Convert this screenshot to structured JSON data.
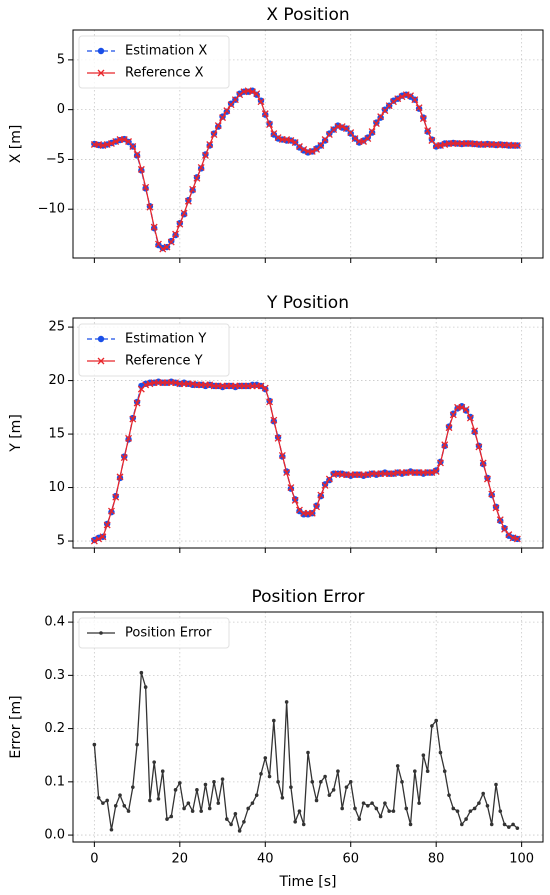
{
  "chart_data": [
    {
      "type": "line",
      "title": "X Position",
      "ylabel": "X [m]",
      "x": [
        0,
        1,
        2,
        3,
        4,
        5,
        6,
        7,
        8,
        9,
        10,
        11,
        12,
        13,
        14,
        15,
        16,
        17,
        18,
        19,
        20,
        21,
        22,
        23,
        24,
        25,
        26,
        27,
        28,
        29,
        30,
        31,
        32,
        33,
        34,
        35,
        36,
        37,
        38,
        39,
        40,
        41,
        42,
        43,
        44,
        45,
        46,
        47,
        48,
        49,
        50,
        51,
        52,
        53,
        54,
        55,
        56,
        57,
        58,
        59,
        60,
        61,
        62,
        63,
        64,
        65,
        66,
        67,
        68,
        69,
        70,
        71,
        72,
        73,
        74,
        75,
        76,
        77,
        78,
        79,
        80,
        81,
        82,
        83,
        84,
        85,
        86,
        87,
        88,
        89,
        90,
        91,
        92,
        93,
        94,
        95,
        96,
        97,
        98,
        99
      ],
      "series": [
        {
          "name": "Estimation X",
          "color": "#1a4fe8",
          "dash": true,
          "marker": "circle",
          "values": [
            -3.45,
            -3.55,
            -3.6,
            -3.5,
            -3.35,
            -3.2,
            -3.05,
            -2.95,
            -3.25,
            -3.7,
            -4.6,
            -6.1,
            -7.9,
            -9.7,
            -11.9,
            -13.6,
            -13.9,
            -13.8,
            -13.2,
            -12.6,
            -11.4,
            -10.5,
            -9.1,
            -8.1,
            -6.8,
            -5.9,
            -4.5,
            -3.6,
            -2.4,
            -1.7,
            -0.7,
            -0.2,
            0.6,
            1.0,
            1.6,
            1.8,
            1.8,
            1.9,
            1.5,
            0.9,
            -0.5,
            -1.4,
            -2.5,
            -2.9,
            -3.0,
            -3.1,
            -3.1,
            -3.3,
            -3.8,
            -4.1,
            -4.3,
            -4.2,
            -3.9,
            -3.6,
            -3.1,
            -2.4,
            -2.0,
            -1.6,
            -1.8,
            -1.9,
            -2.4,
            -2.9,
            -3.3,
            -3.1,
            -2.8,
            -2.3,
            -1.3,
            -0.8,
            0.0,
            0.4,
            0.9,
            1.1,
            1.4,
            1.5,
            1.3,
            1.0,
            0.1,
            -0.8,
            -2.2,
            -3.0,
            -3.7,
            -3.6,
            -3.4,
            -3.4,
            -3.35,
            -3.4,
            -3.45,
            -3.4,
            -3.4,
            -3.45,
            -3.5,
            -3.5,
            -3.45,
            -3.5,
            -3.55,
            -3.5,
            -3.55,
            -3.6,
            -3.6,
            -3.6
          ]
        },
        {
          "name": "Reference X",
          "color": "#e8262b",
          "dash": false,
          "marker": "cross",
          "values": [
            -3.5,
            -3.5,
            -3.6,
            -3.5,
            -3.4,
            -3.2,
            -3.0,
            -3.0,
            -3.2,
            -3.7,
            -4.5,
            -6.0,
            -7.8,
            -9.8,
            -11.8,
            -13.5,
            -14.0,
            -13.8,
            -13.3,
            -12.5,
            -11.5,
            -10.4,
            -9.2,
            -8.0,
            -6.9,
            -5.8,
            -4.6,
            -3.5,
            -2.5,
            -1.6,
            -0.8,
            -0.1,
            0.5,
            1.0,
            1.5,
            1.8,
            1.9,
            1.8,
            1.6,
            0.8,
            -0.4,
            -1.5,
            -2.4,
            -2.8,
            -3.0,
            -3.0,
            -3.1,
            -3.3,
            -3.7,
            -4.0,
            -4.2,
            -4.2,
            -4.0,
            -3.6,
            -3.0,
            -2.5,
            -2.0,
            -1.7,
            -1.7,
            -1.9,
            -2.3,
            -2.9,
            -3.2,
            -3.2,
            -2.9,
            -2.2,
            -1.4,
            -0.7,
            -0.1,
            0.4,
            0.8,
            1.1,
            1.3,
            1.5,
            1.4,
            1.0,
            0.2,
            -0.9,
            -2.1,
            -3.1,
            -3.6,
            -3.6,
            -3.5,
            -3.4,
            -3.4,
            -3.4,
            -3.4,
            -3.4,
            -3.4,
            -3.45,
            -3.45,
            -3.5,
            -3.5,
            -3.5,
            -3.5,
            -3.55,
            -3.55,
            -3.55,
            -3.6,
            -3.6
          ]
        }
      ],
      "xlim": [
        -5,
        105
      ],
      "xticks": [
        0,
        20,
        40,
        60,
        80,
        100
      ],
      "ylim": [
        -14.9,
        8.0
      ],
      "yticks": [
        {
          "value": -10,
          "label": "−10"
        },
        {
          "value": -5,
          "label": "−5"
        },
        0,
        5
      ],
      "grid": true,
      "legend": "upper left"
    },
    {
      "type": "line",
      "title": "Y Position",
      "ylabel": "Y [m]",
      "x": [
        0,
        1,
        2,
        3,
        4,
        5,
        6,
        7,
        8,
        9,
        10,
        11,
        12,
        13,
        14,
        15,
        16,
        17,
        18,
        19,
        20,
        21,
        22,
        23,
        24,
        25,
        26,
        27,
        28,
        29,
        30,
        31,
        32,
        33,
        34,
        35,
        36,
        37,
        38,
        39,
        40,
        41,
        42,
        43,
        44,
        45,
        46,
        47,
        48,
        49,
        50,
        51,
        52,
        53,
        54,
        55,
        56,
        57,
        58,
        59,
        60,
        61,
        62,
        63,
        64,
        65,
        66,
        67,
        68,
        69,
        70,
        71,
        72,
        73,
        74,
        75,
        76,
        77,
        78,
        79,
        80,
        81,
        82,
        83,
        84,
        85,
        86,
        87,
        88,
        89,
        90,
        91,
        92,
        93,
        94,
        95,
        96,
        97,
        98,
        99
      ],
      "series": [
        {
          "name": "Estimation Y",
          "color": "#1a4fe8",
          "dash": true,
          "marker": "circle",
          "values": [
            5.1,
            5.3,
            5.4,
            6.6,
            7.7,
            9.2,
            10.9,
            12.9,
            14.5,
            16.5,
            18.0,
            19.5,
            19.7,
            19.8,
            19.8,
            19.9,
            19.8,
            19.8,
            19.9,
            19.8,
            19.7,
            19.8,
            19.7,
            19.6,
            19.6,
            19.6,
            19.5,
            19.6,
            19.5,
            19.5,
            19.4,
            19.5,
            19.5,
            19.4,
            19.5,
            19.5,
            19.5,
            19.6,
            19.6,
            19.5,
            19.2,
            18.1,
            16.2,
            14.7,
            12.9,
            11.5,
            9.9,
            8.9,
            7.8,
            7.5,
            7.5,
            7.6,
            8.3,
            9.2,
            10.3,
            10.7,
            11.3,
            11.3,
            11.3,
            11.2,
            11.1,
            11.2,
            11.2,
            11.1,
            11.2,
            11.3,
            11.2,
            11.3,
            11.4,
            11.3,
            11.3,
            11.4,
            11.3,
            11.4,
            11.5,
            11.4,
            11.4,
            11.3,
            11.4,
            11.4,
            11.6,
            12.4,
            13.9,
            15.7,
            16.9,
            17.4,
            17.6,
            17.2,
            16.6,
            15.2,
            13.9,
            12.2,
            10.9,
            9.3,
            8.2,
            6.9,
            6.2,
            5.5,
            5.3,
            5.2
          ]
        },
        {
          "name": "Reference Y",
          "color": "#e8262b",
          "dash": false,
          "marker": "cross",
          "values": [
            5.0,
            5.2,
            5.4,
            6.5,
            7.8,
            9.1,
            11.0,
            12.8,
            14.6,
            16.4,
            17.9,
            19.2,
            19.6,
            19.7,
            19.8,
            19.8,
            19.8,
            19.8,
            19.8,
            19.8,
            19.7,
            19.7,
            19.7,
            19.7,
            19.6,
            19.6,
            19.6,
            19.6,
            19.5,
            19.5,
            19.5,
            19.5,
            19.5,
            19.5,
            19.5,
            19.5,
            19.5,
            19.5,
            19.5,
            19.5,
            19.3,
            18.0,
            16.3,
            14.6,
            13.0,
            11.4,
            10.0,
            8.8,
            7.9,
            7.6,
            7.6,
            7.6,
            8.2,
            9.3,
            10.2,
            10.8,
            11.2,
            11.3,
            11.2,
            11.2,
            11.2,
            11.2,
            11.2,
            11.2,
            11.2,
            11.3,
            11.3,
            11.3,
            11.3,
            11.3,
            11.3,
            11.4,
            11.4,
            11.4,
            11.4,
            11.4,
            11.4,
            11.4,
            11.4,
            11.4,
            11.5,
            12.3,
            14.0,
            15.6,
            16.8,
            17.5,
            17.5,
            17.3,
            16.5,
            15.3,
            13.8,
            12.3,
            10.8,
            9.4,
            8.1,
            7.0,
            6.1,
            5.6,
            5.3,
            5.2
          ]
        }
      ],
      "xlim": [
        -5,
        105
      ],
      "xticks": [
        0,
        20,
        40,
        60,
        80,
        100
      ],
      "ylim": [
        4.35,
        25.85
      ],
      "yticks": [
        5,
        10,
        15,
        20,
        25
      ],
      "grid": true,
      "legend": "upper left"
    },
    {
      "type": "line",
      "title": "Position Error",
      "ylabel": "Error [m]",
      "xlabel": "Time [s]",
      "x": [
        0,
        1,
        2,
        3,
        4,
        5,
        6,
        7,
        8,
        9,
        10,
        11,
        12,
        13,
        14,
        15,
        16,
        17,
        18,
        19,
        20,
        21,
        22,
        23,
        24,
        25,
        26,
        27,
        28,
        29,
        30,
        31,
        32,
        33,
        34,
        35,
        36,
        37,
        38,
        39,
        40,
        41,
        42,
        43,
        44,
        45,
        46,
        47,
        48,
        49,
        50,
        51,
        52,
        53,
        54,
        55,
        56,
        57,
        58,
        59,
        60,
        61,
        62,
        63,
        64,
        65,
        66,
        67,
        68,
        69,
        70,
        71,
        72,
        73,
        74,
        75,
        76,
        77,
        78,
        79,
        80,
        81,
        82,
        83,
        84,
        85,
        86,
        87,
        88,
        89,
        90,
        91,
        92,
        93,
        94,
        95,
        96,
        97,
        98,
        99
      ],
      "series": [
        {
          "name": "Position Error",
          "color": "#333333",
          "dash": false,
          "marker": "dot",
          "values": [
            0.17,
            0.07,
            0.06,
            0.065,
            0.01,
            0.055,
            0.075,
            0.055,
            0.045,
            0.09,
            0.17,
            0.305,
            0.278,
            0.065,
            0.137,
            0.068,
            0.12,
            0.03,
            0.035,
            0.085,
            0.098,
            0.05,
            0.06,
            0.045,
            0.085,
            0.045,
            0.095,
            0.05,
            0.1,
            0.06,
            0.105,
            0.03,
            0.02,
            0.04,
            0.008,
            0.025,
            0.05,
            0.06,
            0.075,
            0.115,
            0.145,
            0.11,
            0.215,
            0.1,
            0.07,
            0.25,
            0.09,
            0.025,
            0.045,
            0.02,
            0.155,
            0.1,
            0.065,
            0.1,
            0.11,
            0.075,
            0.085,
            0.12,
            0.05,
            0.09,
            0.1,
            0.05,
            0.03,
            0.06,
            0.055,
            0.06,
            0.05,
            0.035,
            0.06,
            0.045,
            0.045,
            0.13,
            0.1,
            0.05,
            0.02,
            0.12,
            0.06,
            0.15,
            0.12,
            0.205,
            0.215,
            0.155,
            0.12,
            0.075,
            0.05,
            0.045,
            0.02,
            0.03,
            0.045,
            0.05,
            0.06,
            0.078,
            0.055,
            0.02,
            0.095,
            0.045,
            0.02,
            0.015,
            0.02,
            0.013
          ]
        }
      ],
      "xlim": [
        -5,
        105
      ],
      "xticks": [
        0,
        20,
        40,
        60,
        80,
        100
      ],
      "ylim": [
        -0.013,
        0.419
      ],
      "yticks": [
        {
          "value": 0,
          "label": "0.0"
        },
        0.1,
        0.2,
        0.3,
        0.4
      ],
      "grid": true,
      "legend": "upper left"
    }
  ]
}
